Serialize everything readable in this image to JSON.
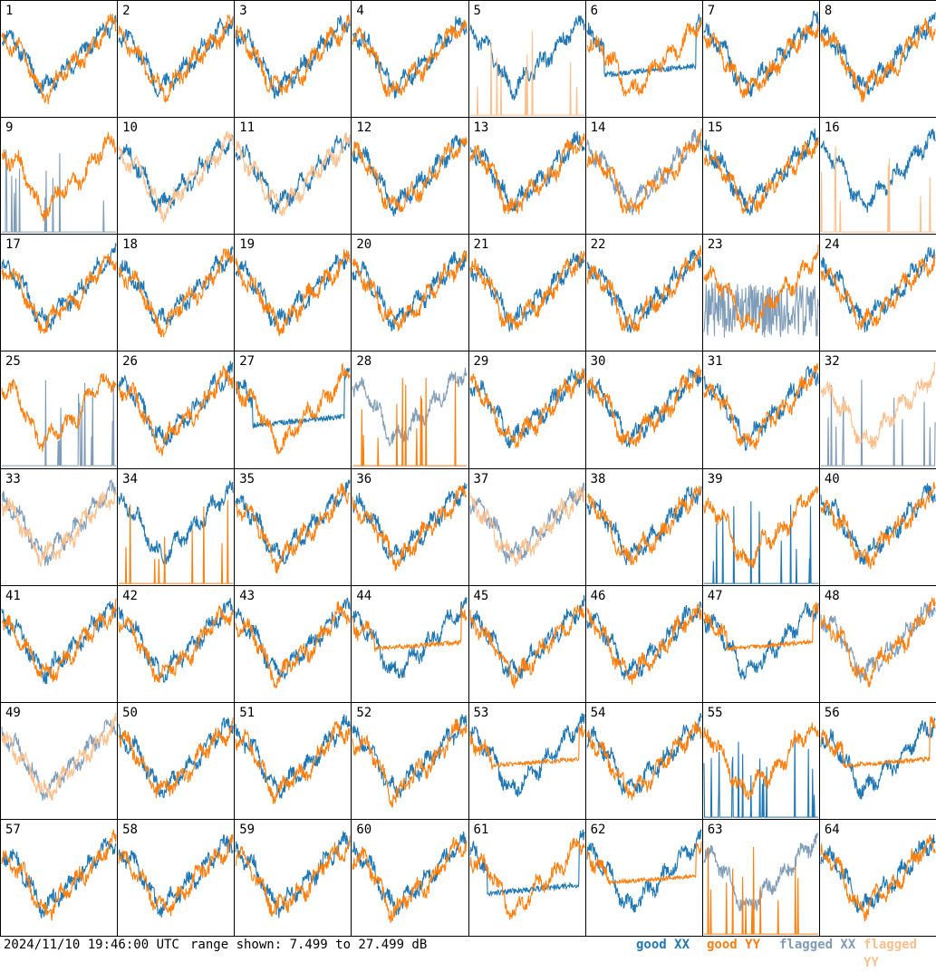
{
  "timestamp": "2024/11/10 19:46:00 UTC",
  "range_text": "range shown: 7.499 to 27.499 dB",
  "legend": [
    {
      "label": "good XX",
      "color": "#1f77b4"
    },
    {
      "label": "good YY",
      "color": "#ff7f0e"
    },
    {
      "label": "flagged XX",
      "color": "#7f9cb8"
    },
    {
      "label": "flagged YY",
      "color": "#ffbf8c"
    }
  ],
  "chart_data": {
    "type": "line",
    "grid": "8x8 small-multiples",
    "ylim": [
      7.499,
      27.499
    ],
    "yunit": "dB",
    "series_names": [
      "good XX",
      "good YY",
      "flagged XX",
      "flagged YY"
    ],
    "panels": [
      {
        "id": "1",
        "xx": "good",
        "yy": "good",
        "style": "normal"
      },
      {
        "id": "2",
        "xx": "good",
        "yy": "good",
        "style": "normal"
      },
      {
        "id": "3",
        "xx": "good",
        "yy": "good",
        "style": "normal"
      },
      {
        "id": "4",
        "xx": "good",
        "yy": "good",
        "style": "normal"
      },
      {
        "id": "5",
        "xx": "good",
        "yy": "flagged",
        "style": "yy_spikes"
      },
      {
        "id": "6",
        "xx": "good",
        "yy": "good",
        "style": "xx_dip"
      },
      {
        "id": "7",
        "xx": "good",
        "yy": "good",
        "style": "normal"
      },
      {
        "id": "8",
        "xx": "good",
        "yy": "good",
        "style": "normal"
      },
      {
        "id": "9",
        "xx": "flagged",
        "yy": "good",
        "style": "xx_spikes"
      },
      {
        "id": "10",
        "xx": "good",
        "yy": "flagged",
        "style": "normal"
      },
      {
        "id": "11",
        "xx": "good",
        "yy": "flagged",
        "style": "normal"
      },
      {
        "id": "12",
        "xx": "good",
        "yy": "good",
        "style": "normal"
      },
      {
        "id": "13",
        "xx": "good",
        "yy": "good",
        "style": "normal"
      },
      {
        "id": "14",
        "xx": "flagged",
        "yy": "good",
        "style": "normal"
      },
      {
        "id": "15",
        "xx": "good",
        "yy": "good",
        "style": "normal"
      },
      {
        "id": "16",
        "xx": "good",
        "yy": "flagged",
        "style": "yy_spikes"
      },
      {
        "id": "17",
        "xx": "good",
        "yy": "good",
        "style": "normal"
      },
      {
        "id": "18",
        "xx": "good",
        "yy": "good",
        "style": "normal"
      },
      {
        "id": "19",
        "xx": "good",
        "yy": "good",
        "style": "normal"
      },
      {
        "id": "20",
        "xx": "good",
        "yy": "good",
        "style": "normal"
      },
      {
        "id": "21",
        "xx": "good",
        "yy": "good",
        "style": "normal"
      },
      {
        "id": "22",
        "xx": "good",
        "yy": "good",
        "style": "normal"
      },
      {
        "id": "23",
        "xx": "flagged",
        "yy": "good",
        "style": "xx_noisy"
      },
      {
        "id": "24",
        "xx": "good",
        "yy": "good",
        "style": "normal"
      },
      {
        "id": "25",
        "xx": "flagged",
        "yy": "good",
        "style": "xx_spikes"
      },
      {
        "id": "26",
        "xx": "good",
        "yy": "good",
        "style": "normal"
      },
      {
        "id": "27",
        "xx": "good",
        "yy": "good",
        "style": "xx_dip"
      },
      {
        "id": "28",
        "xx": "flagged",
        "yy": "good",
        "style": "yy_spikes"
      },
      {
        "id": "29",
        "xx": "good",
        "yy": "good",
        "style": "normal"
      },
      {
        "id": "30",
        "xx": "good",
        "yy": "good",
        "style": "normal"
      },
      {
        "id": "31",
        "xx": "good",
        "yy": "good",
        "style": "normal"
      },
      {
        "id": "32",
        "xx": "flagged",
        "yy": "flagged",
        "style": "xx_spikes"
      },
      {
        "id": "33",
        "xx": "flagged",
        "yy": "flagged",
        "style": "normal"
      },
      {
        "id": "34",
        "xx": "good",
        "yy": "good",
        "style": "yy_spikes"
      },
      {
        "id": "35",
        "xx": "good",
        "yy": "good",
        "style": "normal"
      },
      {
        "id": "36",
        "xx": "good",
        "yy": "good",
        "style": "normal"
      },
      {
        "id": "37",
        "xx": "flagged",
        "yy": "flagged",
        "style": "normal"
      },
      {
        "id": "38",
        "xx": "good",
        "yy": "good",
        "style": "normal"
      },
      {
        "id": "39",
        "xx": "good",
        "yy": "good",
        "style": "xx_spikes"
      },
      {
        "id": "40",
        "xx": "good",
        "yy": "good",
        "style": "normal"
      },
      {
        "id": "41",
        "xx": "good",
        "yy": "good",
        "style": "normal"
      },
      {
        "id": "42",
        "xx": "good",
        "yy": "good",
        "style": "normal"
      },
      {
        "id": "43",
        "xx": "good",
        "yy": "good",
        "style": "normal"
      },
      {
        "id": "44",
        "xx": "good",
        "yy": "good",
        "style": "yy_dip"
      },
      {
        "id": "45",
        "xx": "good",
        "yy": "good",
        "style": "normal"
      },
      {
        "id": "46",
        "xx": "good",
        "yy": "good",
        "style": "normal"
      },
      {
        "id": "47",
        "xx": "good",
        "yy": "good",
        "style": "yy_dip"
      },
      {
        "id": "48",
        "xx": "flagged",
        "yy": "good",
        "style": "normal"
      },
      {
        "id": "49",
        "xx": "flagged",
        "yy": "flagged",
        "style": "normal"
      },
      {
        "id": "50",
        "xx": "good",
        "yy": "good",
        "style": "normal"
      },
      {
        "id": "51",
        "xx": "good",
        "yy": "good",
        "style": "normal"
      },
      {
        "id": "52",
        "xx": "good",
        "yy": "good",
        "style": "normal"
      },
      {
        "id": "53",
        "xx": "good",
        "yy": "good",
        "style": "yy_dip"
      },
      {
        "id": "54",
        "xx": "good",
        "yy": "good",
        "style": "normal"
      },
      {
        "id": "55",
        "xx": "good",
        "yy": "good",
        "style": "xx_spikes"
      },
      {
        "id": "56",
        "xx": "good",
        "yy": "good",
        "style": "yy_dip"
      },
      {
        "id": "57",
        "xx": "good",
        "yy": "good",
        "style": "normal"
      },
      {
        "id": "58",
        "xx": "good",
        "yy": "good",
        "style": "normal"
      },
      {
        "id": "59",
        "xx": "good",
        "yy": "good",
        "style": "normal"
      },
      {
        "id": "60",
        "xx": "good",
        "yy": "good",
        "style": "normal"
      },
      {
        "id": "61",
        "xx": "good",
        "yy": "good",
        "style": "xx_dip"
      },
      {
        "id": "62",
        "xx": "good",
        "yy": "good",
        "style": "yy_dip"
      },
      {
        "id": "63",
        "xx": "flagged",
        "yy": "good",
        "style": "yy_spikes"
      },
      {
        "id": "64",
        "xx": "good",
        "yy": "good",
        "style": "normal"
      }
    ]
  }
}
